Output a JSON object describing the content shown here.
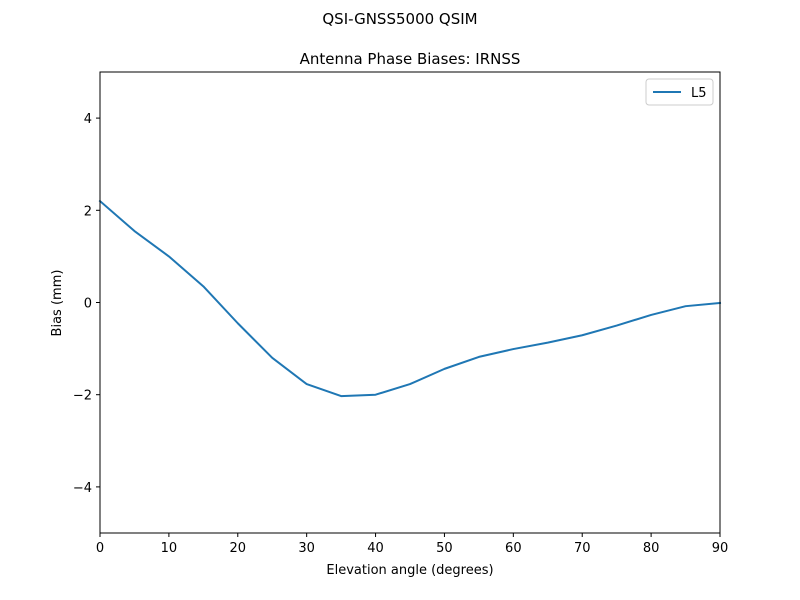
{
  "suptitle": "QSI-GNSS5000    QSIM",
  "chart_data": {
    "type": "line",
    "title": "Antenna Phase Biases: IRNSS",
    "xlabel": "Elevation angle (degrees)",
    "ylabel": "Bias (mm)",
    "xlim": [
      0,
      90
    ],
    "ylim": [
      -5,
      5
    ],
    "xticks": [
      0,
      10,
      20,
      30,
      40,
      50,
      60,
      70,
      80,
      90
    ],
    "yticks": [
      -4,
      -2,
      0,
      2,
      4
    ],
    "grid": false,
    "legend_position": "top-right",
    "series": [
      {
        "name": "L5",
        "color": "#1f77b4",
        "x": [
          0,
          5,
          10,
          15,
          20,
          25,
          30,
          35,
          40,
          45,
          50,
          55,
          60,
          65,
          70,
          75,
          80,
          85,
          90
        ],
        "y": [
          2.2,
          1.55,
          1.0,
          0.35,
          -0.45,
          -1.2,
          -1.77,
          -2.03,
          -2.0,
          -1.77,
          -1.44,
          -1.18,
          -1.01,
          -0.87,
          -0.71,
          -0.5,
          -0.27,
          -0.08,
          -0.01
        ]
      }
    ]
  }
}
